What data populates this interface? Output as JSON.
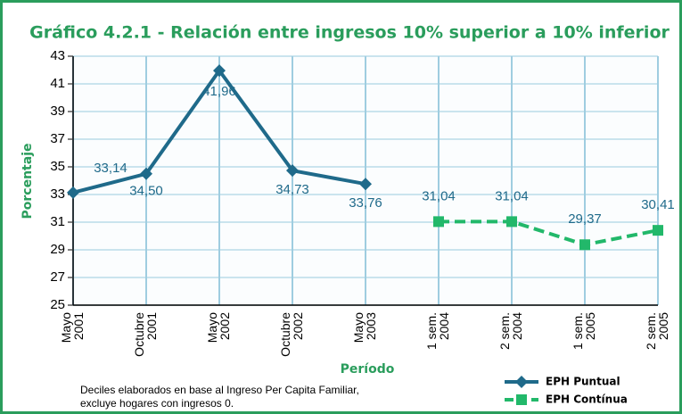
{
  "chart_data": {
    "type": "line",
    "title": "Gráfico 4.2.1 - Relación entre ingresos 10% superior a 10% inferior",
    "x_label": "Período",
    "y_label": "Porcentaje",
    "categories": [
      "Mayo 2001",
      "Octubre 2001",
      "Mayo 2002",
      "Octubre 2002",
      "Mayo 2003",
      "1 sem. 2004",
      "2 sem. 2004",
      "1 sem. 2005",
      "2 sem. 2005"
    ],
    "series": [
      {
        "name": "EPH Puntual",
        "color": "#1f6a8a",
        "marker": "diamond",
        "dashed": false,
        "values": [
          33.14,
          34.5,
          41.96,
          34.73,
          33.76,
          null,
          null,
          null,
          null
        ],
        "value_labels": [
          "33,14",
          "34,50",
          "41,96",
          "34,73",
          "33,76",
          null,
          null,
          null,
          null
        ]
      },
      {
        "name": "EPH Contínua",
        "color": "#22b86a",
        "marker": "square",
        "dashed": true,
        "values": [
          null,
          null,
          null,
          null,
          null,
          31.04,
          31.04,
          29.37,
          30.41
        ],
        "value_labels": [
          null,
          null,
          null,
          null,
          null,
          "31,04",
          "31,04",
          "29,37",
          "30,41"
        ]
      }
    ],
    "ylim": [
      25,
      43
    ],
    "yticks": [
      25,
      27,
      29,
      31,
      33,
      35,
      37,
      39,
      41,
      43
    ],
    "grid": true,
    "notes": [
      "Deciles elaborados en base al Ingreso Per Capita Familiar,",
      "excluye hogares con ingresos 0."
    ],
    "legend": "bottom-right"
  }
}
